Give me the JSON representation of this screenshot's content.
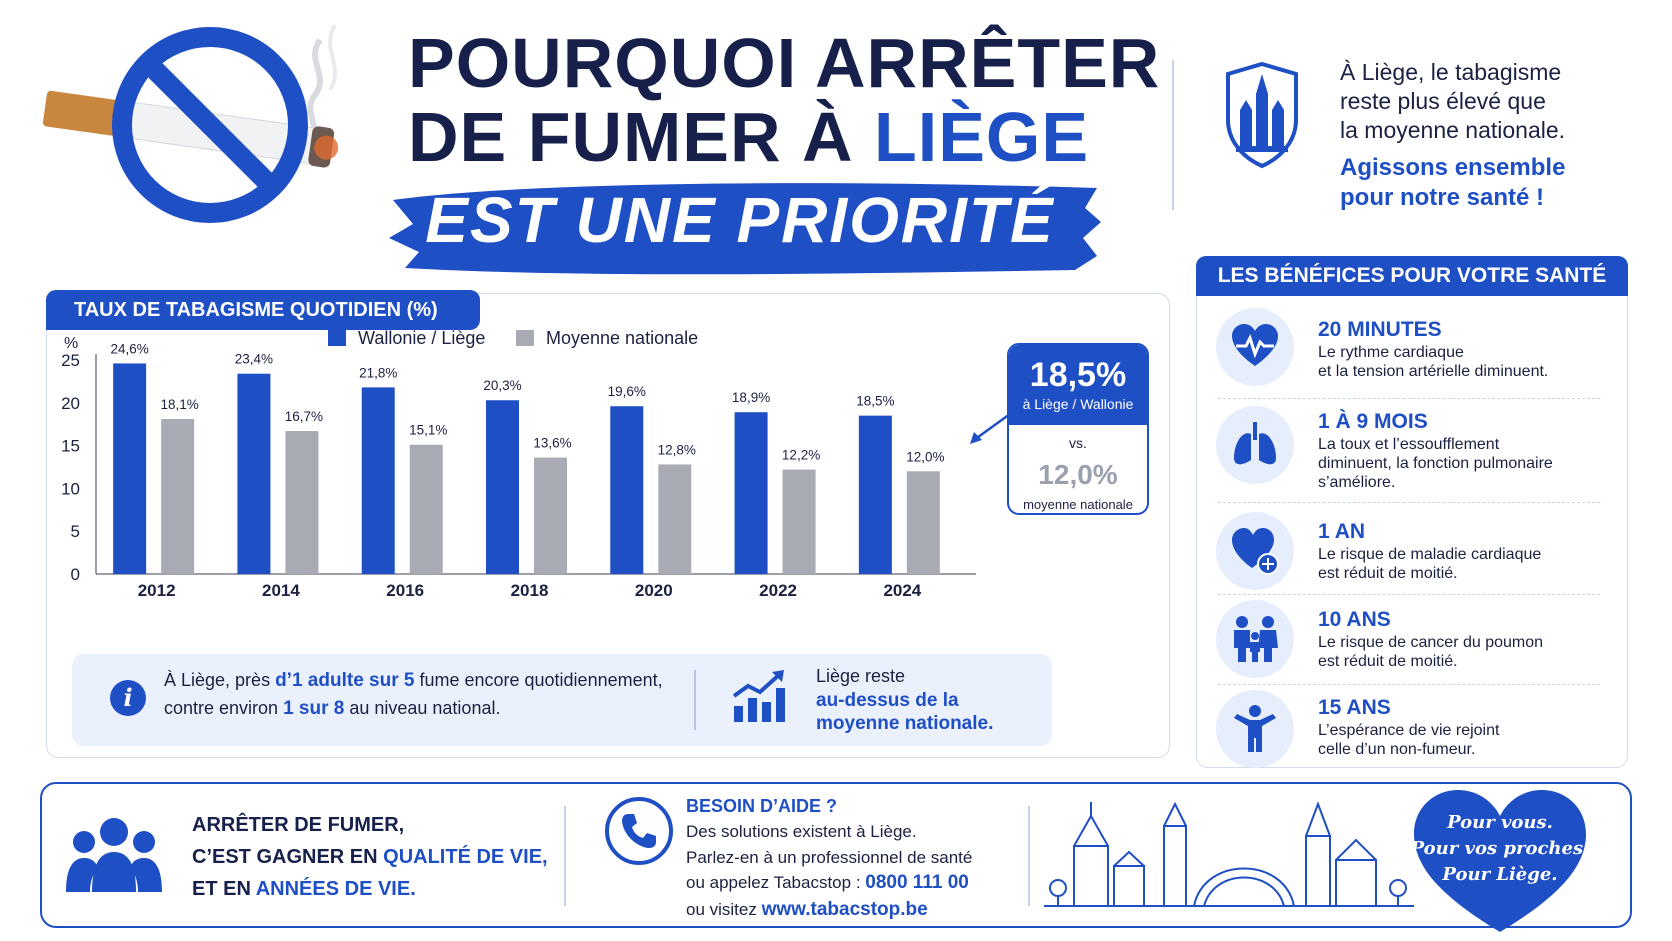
{
  "header": {
    "title_line1": "POURQUOI ARRÊTER",
    "title_line2_a": "DE FUMER À ",
    "title_line2_b": "LIÈGE",
    "subtitle": "EST UNE PRIORITÉ"
  },
  "intro": {
    "line1": "À Liège, le tabagisme",
    "line2": "reste plus élevé que",
    "line3": "la moyenne nationale.",
    "cta1": "Agissons ensemble",
    "cta2": "pour notre santé !"
  },
  "chart_data": {
    "type": "bar",
    "title": "TAUX DE TABAGISME QUOTIDIEN (%)",
    "ylabel": "%",
    "ylim": [
      0,
      25
    ],
    "yticks": [
      0,
      5,
      10,
      15,
      20,
      25
    ],
    "categories": [
      "2012",
      "2014",
      "2016",
      "2018",
      "2020",
      "2022",
      "2024"
    ],
    "series": [
      {
        "name": "Wallonie / Liège",
        "color": "#1f4fc4",
        "values": [
          24.6,
          23.4,
          21.8,
          20.3,
          19.6,
          18.9,
          18.5
        ],
        "labels": [
          "24,6%",
          "23,4%",
          "21,8%",
          "20,3%",
          "19,6%",
          "18,9%",
          "18,5%"
        ]
      },
      {
        "name": "Moyenne nationale",
        "color": "#a8abb3",
        "values": [
          18.1,
          16.7,
          15.1,
          13.6,
          12.8,
          12.2,
          12.0
        ],
        "labels": [
          "18,1%",
          "16,7%",
          "15,1%",
          "13,6%",
          "12,8%",
          "12,2%",
          "12,0%"
        ]
      }
    ],
    "legend": "top",
    "grid": false
  },
  "callout": {
    "value1": "18,5%",
    "sub1": "à Liège / Wallonie",
    "vs": "vs.",
    "value2": "12,0%",
    "sub2": "moyenne nationale"
  },
  "info": {
    "icon": "info-icon",
    "l1a": "À Liège, près ",
    "l1b": "d’1 adulte sur 5",
    "l1c": " fume encore quotidiennement,",
    "l2a": "contre environ ",
    "l2b": "1 sur 8",
    "l2c": " au niveau national.",
    "trend1": "Liège reste",
    "trend2": "au-dessus de la",
    "trend3": "moyenne nationale."
  },
  "benefits": {
    "heading": "LES BÉNÉFICES POUR VOTRE SANTÉ",
    "items": [
      {
        "icon": "heart-pulse-icon",
        "title": "20 MINUTES",
        "l1": "Le rythme cardiaque",
        "l2": "et la tension artérielle diminuent.",
        "l3": ""
      },
      {
        "icon": "lungs-icon",
        "title": "1 À 9 MOIS",
        "l1": "La toux et l’essoufflement",
        "l2": "diminuent, la fonction pulmonaire",
        "l3": "s’améliore."
      },
      {
        "icon": "heart-plus-icon",
        "title": "1 AN",
        "l1": "Le risque de maladie cardiaque",
        "l2": "est réduit de moitié.",
        "l3": ""
      },
      {
        "icon": "family-icon",
        "title": "10 ANS",
        "l1": "Le risque de cancer du poumon",
        "l2": "est réduit de moitié.",
        "l3": ""
      },
      {
        "icon": "person-icon",
        "title": "15 ANS",
        "l1": "L’espérance de vie rejoint",
        "l2": "celle d’un non-fumeur.",
        "l3": ""
      }
    ]
  },
  "footer": {
    "l1": "ARRÊTER DE FUMER,",
    "l2a": "C’EST GAGNER EN ",
    "l2b": "QUALITÉ DE VIE,",
    "l3a": "ET EN ",
    "l3b": "ANNÉES DE VIE.",
    "help_title": "BESOIN D’AIDE ?",
    "help1": "Des solutions existent à Liège.",
    "help2": "Parlez-en à un professionnel de santé",
    "help3a": "ou appelez Tabacstop : ",
    "help3b": "0800 111 00",
    "help4a": "ou visitez ",
    "help4b": "www.tabacstop.be",
    "heart1": "Pour vous.",
    "heart2": "Pour vos proches.",
    "heart3": "Pour Liège."
  },
  "colors": {
    "accent": "#1f4fc4",
    "dark": "#16204a",
    "grey": "#a8abb3"
  }
}
